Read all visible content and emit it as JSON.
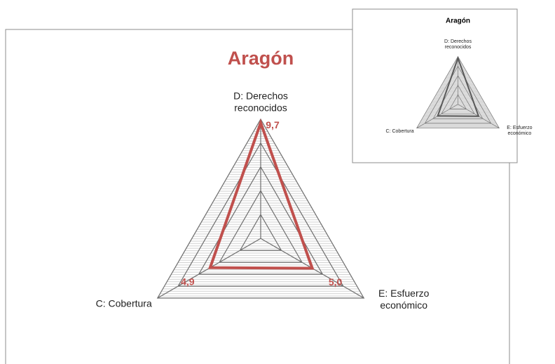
{
  "chart_data": [
    {
      "type": "radar",
      "title": "Aragón",
      "categories": [
        "D: Derechos reconocidos",
        "E: Esfuerzo económico",
        "C: Cobertura"
      ],
      "values": [
        9.7,
        5.0,
        4.9
      ],
      "value_labels": [
        "9,7",
        "5,0",
        "4,9"
      ],
      "color": "#c0504d",
      "title_color": "#c0504d",
      "ylim": [
        0,
        10
      ],
      "yticks": [
        0,
        2,
        4,
        6,
        8,
        10
      ],
      "grid": true
    },
    {
      "type": "radar",
      "title": "Aragón",
      "categories": [
        "D: Derechos reconocidos",
        "E: Esfuerzo económico",
        "C: Cobertura"
      ],
      "values": [
        9.7,
        5.0,
        4.9
      ],
      "color": "#595959",
      "title_color": "#000000",
      "ylim": [
        0,
        10
      ],
      "yticks": [
        0,
        2,
        4,
        6,
        8,
        10
      ],
      "grid": true
    }
  ]
}
